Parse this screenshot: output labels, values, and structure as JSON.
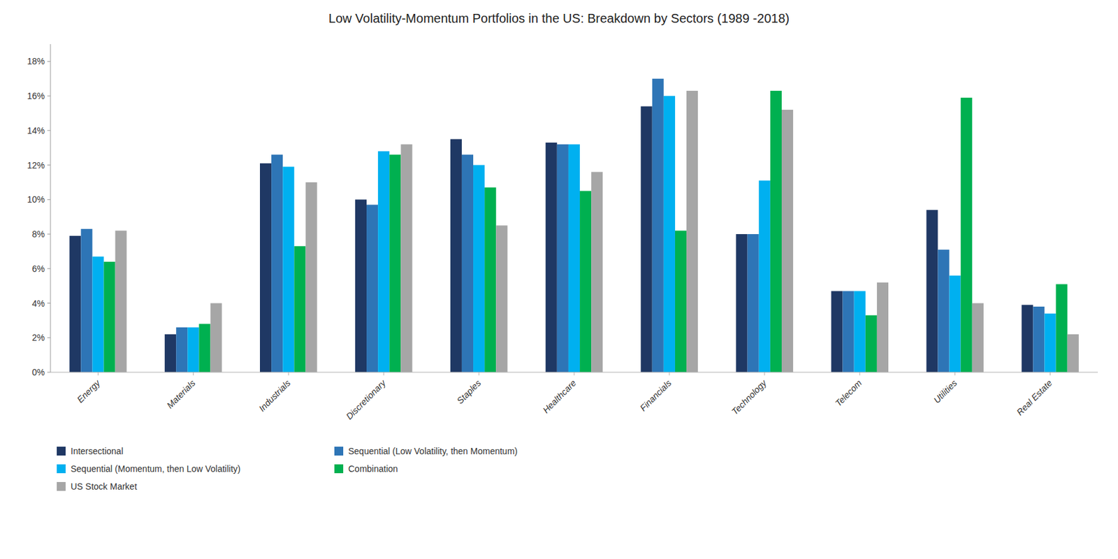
{
  "chart_data": {
    "type": "bar",
    "title": "Low Volatility-Momentum  Portfolios in the US: Breakdown by Sectors (1989 -2018)",
    "categories": [
      "Energy",
      "Materials",
      "Industrials",
      "Discretionary",
      "Staples",
      "Healthcare",
      "Financials",
      "Technology",
      "Telecom",
      "Utilities",
      "Real Estate"
    ],
    "series": [
      {
        "name": "Intersectional",
        "color": "#1f3864",
        "values": [
          0.079,
          0.022,
          0.121,
          0.1,
          0.135,
          0.133,
          0.154,
          0.08,
          0.047,
          0.094,
          0.039
        ]
      },
      {
        "name": "Sequential (Low Volatility, then Momentum)",
        "color": "#2e75b6",
        "values": [
          0.083,
          0.026,
          0.126,
          0.097,
          0.126,
          0.132,
          0.17,
          0.08,
          0.047,
          0.071,
          0.038
        ]
      },
      {
        "name": "Sequential (Momentum, then Low Volatility)",
        "color": "#00b0f0",
        "values": [
          0.067,
          0.026,
          0.119,
          0.128,
          0.12,
          0.132,
          0.16,
          0.111,
          0.047,
          0.056,
          0.034
        ]
      },
      {
        "name": "Combination",
        "color": "#00b050",
        "values": [
          0.064,
          0.028,
          0.073,
          0.126,
          0.107,
          0.105,
          0.082,
          0.163,
          0.033,
          0.159,
          0.051
        ]
      },
      {
        "name": "US Stock Market",
        "color": "#a6a6a6",
        "values": [
          0.082,
          0.04,
          0.11,
          0.132,
          0.085,
          0.116,
          0.163,
          0.152,
          0.052,
          0.04,
          0.022
        ]
      }
    ],
    "ylim": [
      0,
      0.19
    ],
    "yticks": [
      {
        "value": 0,
        "label": "0%"
      },
      {
        "value": 0.02,
        "label": "2%"
      },
      {
        "value": 0.04,
        "label": "4%"
      },
      {
        "value": 0.06,
        "label": "6%"
      },
      {
        "value": 0.08,
        "label": "8%"
      },
      {
        "value": 0.1,
        "label": "10%"
      },
      {
        "value": 0.12,
        "label": "12%"
      },
      {
        "value": 0.14,
        "label": "14%"
      },
      {
        "value": 0.16,
        "label": "16%"
      },
      {
        "value": 0.18,
        "label": "18%"
      }
    ],
    "grid": false,
    "legend": "bottom"
  }
}
